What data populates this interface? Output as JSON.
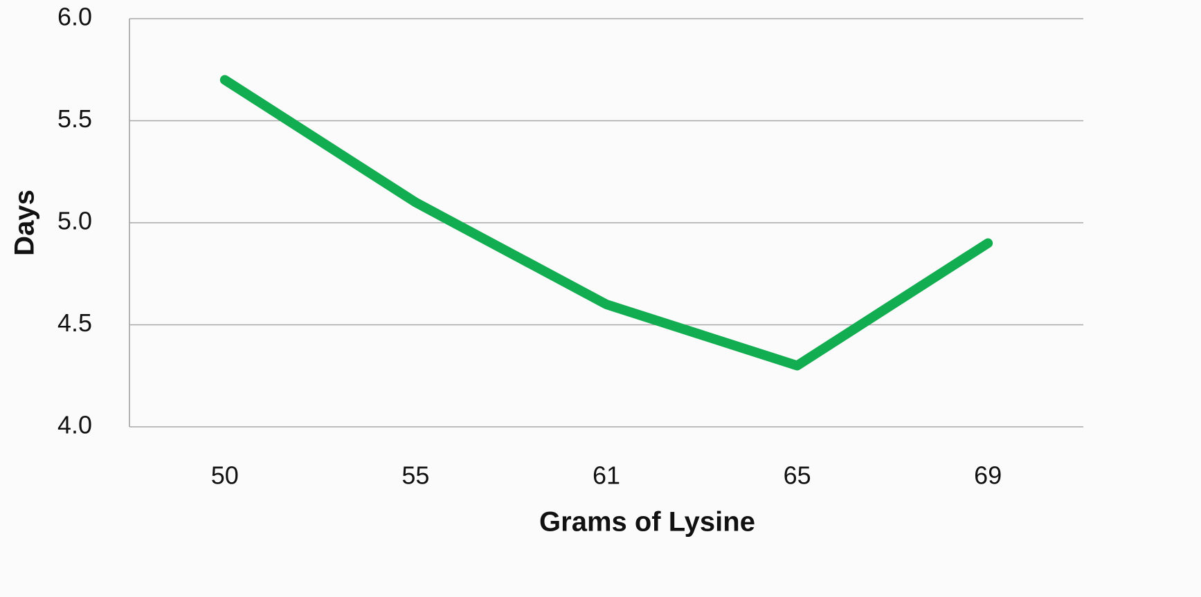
{
  "chart_data": {
    "type": "line",
    "xlabel": "Grams of Lysine",
    "ylabel": "Days",
    "categories": [
      "50",
      "55",
      "61",
      "65",
      "69"
    ],
    "series": [
      {
        "name": "Days",
        "color": "#12ad50",
        "values": [
          5.7,
          5.1,
          4.6,
          4.3,
          4.9
        ]
      }
    ],
    "ylim": [
      4,
      6
    ],
    "yticks": [
      {
        "value": 4,
        "label": "4.0"
      },
      4.5,
      {
        "value": 5,
        "label": "5.0"
      },
      5.5,
      {
        "value": 6,
        "label": "6.0"
      }
    ],
    "grid": true,
    "legend": false
  }
}
